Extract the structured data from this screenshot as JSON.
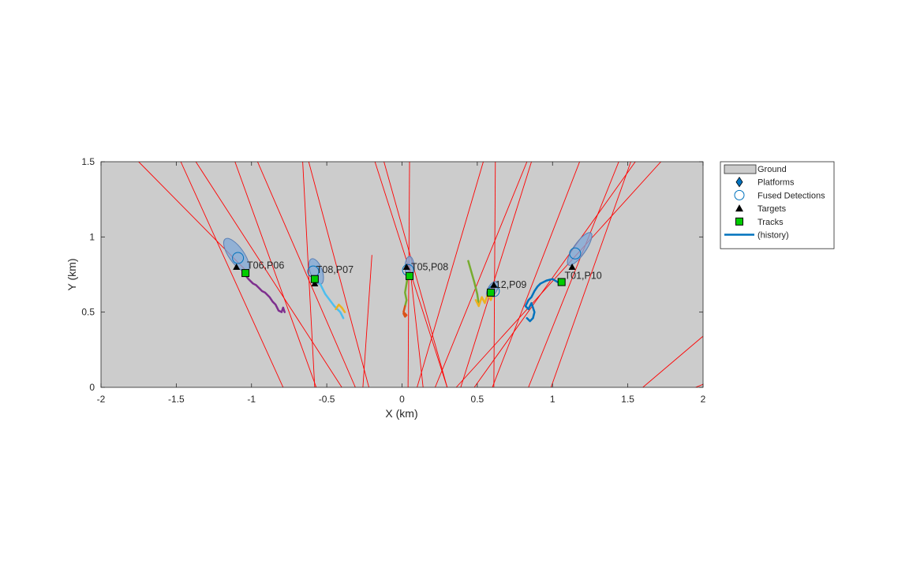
{
  "chart_data": {
    "type": "scatter",
    "xlabel": "X (km)",
    "ylabel": "Y (km)",
    "xlim": [
      -2,
      2
    ],
    "ylim": [
      0,
      1.5
    ],
    "xticks": [
      -2,
      -1.5,
      -1,
      -0.5,
      0,
      0.5,
      1,
      1.5,
      2
    ],
    "xtick_labels": [
      "-2",
      "-1.5",
      "-1",
      "-0.5",
      "0",
      "0.5",
      "1",
      "1.5",
      "2"
    ],
    "yticks": [
      0,
      0.5,
      1,
      1.5
    ],
    "ytick_labels": [
      "0",
      "0.5",
      "1",
      "1.5"
    ],
    "grid": false,
    "background_color": "#cccccc",
    "legend_placement": "outside-right",
    "legend": [
      {
        "label": "Ground",
        "symbol": "patch",
        "color": "#cccccc"
      },
      {
        "label": "Platforms",
        "symbol": "diamond",
        "color": "#0072bd"
      },
      {
        "label": "Fused Detections",
        "symbol": "circle",
        "color": "#0072bd"
      },
      {
        "label": "Targets",
        "symbol": "triangle",
        "color": "#000000"
      },
      {
        "label": "Tracks",
        "symbol": "square",
        "color": "#00cc00"
      },
      {
        "label": "(history)",
        "symbol": "line",
        "color": "#0072bd"
      }
    ],
    "rays": [
      {
        "x": [
          -1.75,
          -1.04
        ],
        "y": [
          1.5,
          0.78
        ]
      },
      {
        "x": [
          -1.47,
          -0.79
        ],
        "y": [
          1.5,
          0.0
        ]
      },
      {
        "x": [
          -1.37,
          -0.4
        ],
        "y": [
          1.5,
          0.0
        ]
      },
      {
        "x": [
          -1.11,
          -0.57
        ],
        "y": [
          1.5,
          0.0
        ]
      },
      {
        "x": [
          -0.96,
          -0.31
        ],
        "y": [
          1.5,
          0.0
        ]
      },
      {
        "x": [
          -0.66,
          -0.58
        ],
        "y": [
          1.5,
          0.0
        ]
      },
      {
        "x": [
          -0.62,
          -0.22
        ],
        "y": [
          1.5,
          0.0
        ]
      },
      {
        "x": [
          -0.2,
          -0.26
        ],
        "y": [
          0.88,
          0.0
        ]
      },
      {
        "x": [
          -0.18,
          0.3
        ],
        "y": [
          1.5,
          0.0
        ]
      },
      {
        "x": [
          0.05,
          0.04
        ],
        "y": [
          1.5,
          0.0
        ]
      },
      {
        "x": [
          0.05,
          0.14
        ],
        "y": [
          0.82,
          0.0
        ]
      },
      {
        "x": [
          -0.12,
          0.3
        ],
        "y": [
          1.5,
          0.0
        ]
      },
      {
        "x": [
          0.54,
          0.1
        ],
        "y": [
          1.5,
          0.0
        ]
      },
      {
        "x": [
          0.86,
          0.39
        ],
        "y": [
          1.5,
          0.0
        ]
      },
      {
        "x": [
          0.62,
          0.61
        ],
        "y": [
          1.5,
          0.0
        ]
      },
      {
        "x": [
          0.83,
          0.22
        ],
        "y": [
          1.5,
          0.0
        ]
      },
      {
        "x": [
          1.18,
          0.6
        ],
        "y": [
          1.5,
          0.0
        ]
      },
      {
        "x": [
          1.44,
          0.84
        ],
        "y": [
          1.5,
          0.0
        ]
      },
      {
        "x": [
          1.52,
          0.99
        ],
        "y": [
          1.5,
          0.0
        ]
      },
      {
        "x": [
          1.72,
          0.36
        ],
        "y": [
          1.5,
          0.0
        ]
      },
      {
        "x": [
          1.55,
          0.48
        ],
        "y": [
          1.5,
          0.0
        ]
      },
      {
        "x": [
          2.0,
          1.6
        ],
        "y": [
          0.34,
          0.0
        ]
      },
      {
        "x": [
          2.0,
          1.95
        ],
        "y": [
          0.02,
          0.0
        ]
      }
    ],
    "histories": [
      {
        "color": "#7e2f8e",
        "x": [
          -1.06,
          -1.02,
          -0.99,
          -0.97,
          -0.95,
          -0.93,
          -0.91,
          -0.88,
          -0.86,
          -0.84,
          -0.82,
          -0.8,
          -0.79,
          -0.78
        ],
        "y": [
          0.77,
          0.72,
          0.69,
          0.68,
          0.66,
          0.64,
          0.63,
          0.6,
          0.57,
          0.55,
          0.51,
          0.5,
          0.53,
          0.5
        ]
      },
      {
        "color": "#4dbeee",
        "x": [
          -0.58,
          -0.54,
          -0.51,
          -0.48,
          -0.45,
          -0.43,
          -0.41,
          -0.39
        ],
        "y": [
          0.73,
          0.68,
          0.62,
          0.58,
          0.54,
          0.52,
          0.5,
          0.46
        ]
      },
      {
        "color": "#edb120",
        "x": [
          -0.44,
          -0.42,
          -0.4,
          -0.38
        ],
        "y": [
          0.52,
          0.55,
          0.53,
          0.5
        ]
      },
      {
        "color": "#77ac30",
        "x": [
          0.04,
          0.03,
          0.02,
          0.03,
          0.02
        ],
        "y": [
          0.75,
          0.69,
          0.63,
          0.58,
          0.54
        ]
      },
      {
        "color": "#d95319",
        "x": [
          0.02,
          0.01,
          0.03,
          0.02,
          0.01
        ],
        "y": [
          0.54,
          0.5,
          0.48,
          0.47,
          0.49
        ]
      },
      {
        "color": "#77ac30",
        "x": [
          0.44,
          0.46,
          0.48,
          0.5,
          0.51
        ],
        "y": [
          0.84,
          0.77,
          0.7,
          0.62,
          0.55
        ]
      },
      {
        "color": "#edb120",
        "x": [
          0.49,
          0.51,
          0.53,
          0.55,
          0.57,
          0.59,
          0.61
        ],
        "y": [
          0.58,
          0.54,
          0.6,
          0.56,
          0.62,
          0.58,
          0.64
        ]
      },
      {
        "color": "#0072bd",
        "x": [
          1.05,
          1.0,
          0.96,
          0.92,
          0.9,
          0.88,
          0.86,
          0.84,
          0.82,
          0.84,
          0.86,
          0.88,
          0.87,
          0.85,
          0.83
        ],
        "y": [
          0.69,
          0.72,
          0.71,
          0.69,
          0.67,
          0.64,
          0.6,
          0.58,
          0.54,
          0.52,
          0.56,
          0.5,
          0.46,
          0.44,
          0.46
        ]
      }
    ],
    "covariances": [
      {
        "cx": -1.1,
        "cy": 0.88,
        "rx": 0.05,
        "ry": 0.13,
        "angle": -35
      },
      {
        "cx": -0.57,
        "cy": 0.77,
        "rx": 0.04,
        "ry": 0.09,
        "angle": -20
      },
      {
        "cx": 0.05,
        "cy": 0.8,
        "rx": 0.03,
        "ry": 0.07,
        "angle": 0
      },
      {
        "cx": 0.6,
        "cy": 0.65,
        "rx": 0.03,
        "ry": 0.06,
        "angle": 30
      },
      {
        "cx": 1.18,
        "cy": 0.92,
        "rx": 0.04,
        "ry": 0.13,
        "angle": 35
      }
    ],
    "fused_detections": [
      {
        "x": -1.09,
        "y": 0.86
      },
      {
        "x": -0.59,
        "y": 0.77
      },
      {
        "x": 0.04,
        "y": 0.78
      },
      {
        "x": 0.61,
        "y": 0.64
      },
      {
        "x": 1.15,
        "y": 0.89
      }
    ],
    "targets": [
      {
        "x": -1.1,
        "y": 0.8
      },
      {
        "x": -0.58,
        "y": 0.69
      },
      {
        "x": 0.03,
        "y": 0.8
      },
      {
        "x": 0.61,
        "y": 0.68
      },
      {
        "x": 1.13,
        "y": 0.8
      }
    ],
    "tracks": [
      {
        "x": -1.04,
        "y": 0.76
      },
      {
        "x": -0.58,
        "y": 0.72
      },
      {
        "x": 0.05,
        "y": 0.74
      },
      {
        "x": 0.59,
        "y": 0.63
      },
      {
        "x": 1.06,
        "y": 0.7
      }
    ],
    "annotations": [
      {
        "text": "T06,P06",
        "x": -1.03,
        "y": 0.79
      },
      {
        "text": "T08,P07",
        "x": -0.57,
        "y": 0.76
      },
      {
        "text": "T05,P08",
        "x": 0.06,
        "y": 0.78
      },
      {
        "text": "12,P09",
        "x": 0.62,
        "y": 0.66
      },
      {
        "text": "T01,P10",
        "x": 1.08,
        "y": 0.72
      }
    ]
  }
}
